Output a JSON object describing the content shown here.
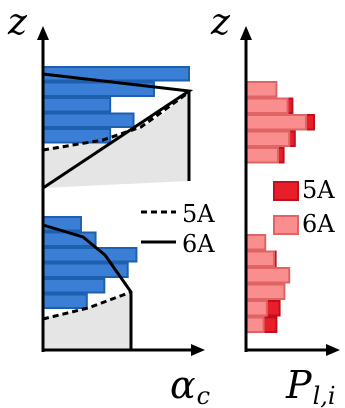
{
  "chart_data": [
    {
      "type": "bar",
      "orientation": "horizontal",
      "panel": "left",
      "ylabel": "z",
      "xlabel": "α",
      "xlabel_sub": "c",
      "grid": false,
      "legend": {
        "placement": "right-middle",
        "entries": [
          {
            "name": "5A",
            "style": "dashed"
          },
          {
            "name": "6A",
            "style": "solid"
          }
        ]
      },
      "bars": {
        "color": "#3a7fd5",
        "edge_color": "#1f5fb0",
        "upper_cluster": [
          1.0,
          0.76,
          0.46,
          0.62,
          0.46
        ],
        "lower_cluster": [
          0.26,
          0.36,
          0.64,
          0.58,
          0.42,
          0.3
        ]
      },
      "series": [
        {
          "name": "6A",
          "style": "solid",
          "cluster": "upper",
          "x": [
            0.0,
            1.0,
            0.0
          ]
        },
        {
          "name": "5A",
          "style": "dashed",
          "cluster": "upper",
          "x": [
            0.0,
            0.42,
            0.65,
            0.75,
            1.0
          ]
        },
        {
          "name": "6A",
          "style": "solid",
          "cluster": "lower",
          "x": [
            0.0,
            0.4,
            0.62,
            0.86
          ]
        },
        {
          "name": "5A",
          "style": "dashed",
          "cluster": "lower",
          "x": [
            0.0,
            0.45,
            0.86
          ]
        }
      ]
    },
    {
      "type": "bar",
      "orientation": "horizontal",
      "panel": "right",
      "ylabel": "z",
      "xlabel": "P",
      "xlabel_sub": "l,i",
      "grid": false,
      "legend": {
        "placement": "right-middle",
        "entries": [
          {
            "name": "5A",
            "color": "#e81e2a"
          },
          {
            "name": "6A",
            "color": "#fa8d8d"
          }
        ]
      },
      "series": [
        {
          "name": "5A",
          "color": "#e81e2a",
          "upper_cluster": [
            0.36,
            0.58,
            0.85,
            0.61,
            0.47
          ],
          "lower_cluster": [
            0.21,
            0.37,
            0.49,
            0.4,
            0.42,
            0.38
          ]
        },
        {
          "name": "6A",
          "color": "#fa8d8d",
          "upper_cluster": [
            0.38,
            0.52,
            0.75,
            0.54,
            0.4
          ],
          "lower_cluster": [
            0.24,
            0.35,
            0.54,
            0.48,
            0.26,
            0.22
          ]
        }
      ]
    }
  ]
}
